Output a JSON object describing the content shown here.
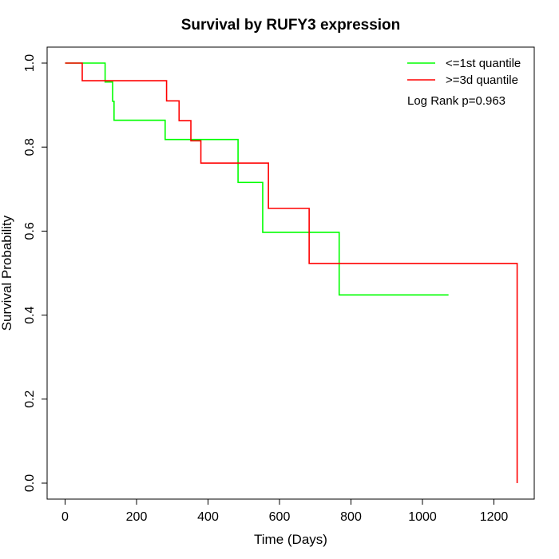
{
  "chart_data": {
    "type": "line",
    "step": true,
    "title": "Survival by RUFY3 expression",
    "xlabel": "Time (Days)",
    "ylabel": "Survival Probability",
    "xlim": [
      0,
      1265
    ],
    "ylim": [
      0.0,
      1.0
    ],
    "x_ticks": [
      "0",
      "200",
      "400",
      "600",
      "800",
      "1000",
      "1200"
    ],
    "y_ticks": [
      "0.0",
      "0.2",
      "0.4",
      "0.6",
      "0.8",
      "1.0"
    ],
    "grid": false,
    "legend_position": "top-right",
    "annotation": "Log Rank p=0.963",
    "series": [
      {
        "name": "<=1st quantile",
        "color": "#00ff00",
        "points": [
          [
            0,
            1.0
          ],
          [
            112,
            1.0
          ],
          [
            112,
            0.955
          ],
          [
            133,
            0.955
          ],
          [
            133,
            0.909
          ],
          [
            137,
            0.909
          ],
          [
            137,
            0.864
          ],
          [
            280,
            0.864
          ],
          [
            280,
            0.818
          ],
          [
            484,
            0.818
          ],
          [
            484,
            0.716
          ],
          [
            553,
            0.716
          ],
          [
            553,
            0.597
          ],
          [
            767,
            0.597
          ],
          [
            767,
            0.448
          ],
          [
            1073,
            0.448
          ]
        ]
      },
      {
        "name": ">=3d quantile",
        "color": "#ff0000",
        "points": [
          [
            0,
            1.0
          ],
          [
            48,
            1.0
          ],
          [
            48,
            0.958
          ],
          [
            284,
            0.958
          ],
          [
            284,
            0.91
          ],
          [
            319,
            0.91
          ],
          [
            319,
            0.863
          ],
          [
            352,
            0.863
          ],
          [
            352,
            0.815
          ],
          [
            380,
            0.815
          ],
          [
            380,
            0.762
          ],
          [
            569,
            0.762
          ],
          [
            569,
            0.654
          ],
          [
            683,
            0.654
          ],
          [
            683,
            0.523
          ],
          [
            1265,
            0.523
          ],
          [
            1265,
            0.0
          ]
        ]
      }
    ]
  }
}
